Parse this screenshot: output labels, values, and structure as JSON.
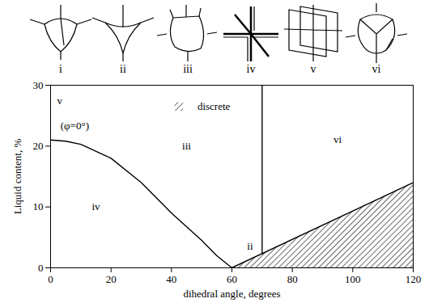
{
  "chart_data": {
    "type": "line",
    "xlabel": "dihedral angle, degrees",
    "ylabel": "Liquid content, %",
    "xlim": [
      0,
      120
    ],
    "ylim": [
      0,
      30
    ],
    "xticks": [
      0,
      20,
      40,
      60,
      80,
      100,
      120
    ],
    "yticks": [
      0,
      10,
      20,
      30
    ],
    "grid": false,
    "series": [
      {
        "x": [
          0,
          5,
          10,
          20,
          30,
          40,
          50,
          55,
          60
        ],
        "values": [
          21,
          20.8,
          20.3,
          18,
          14,
          9,
          4.5,
          2,
          0
        ],
        "color": "#000000"
      },
      {
        "x": [
          60,
          120
        ],
        "values": [
          0,
          14
        ],
        "color": "#000000"
      },
      {
        "x": [
          70,
          70
        ],
        "values": [
          2.3,
          30
        ],
        "color": "#000000"
      }
    ],
    "regions": [
      {
        "x": [
          60,
          120
        ],
        "lower": [
          0,
          0
        ],
        "upper": [
          0,
          14
        ]
      }
    ],
    "annotations": [
      {
        "text": "v",
        "x": 3,
        "y": 27.5
      },
      {
        "text": "(φ=0°)",
        "x": 8,
        "y": 23.3
      },
      {
        "text": "iii",
        "x": 45,
        "y": 20
      },
      {
        "text": "iv",
        "x": 15,
        "y": 10
      },
      {
        "text": "ii",
        "x": 66,
        "y": 3.5
      },
      {
        "text": "vi",
        "x": 95,
        "y": 21
      },
      {
        "text": "discrete",
        "x": 54,
        "y": 26.5,
        "marker": "hatch"
      }
    ],
    "diagrams": [
      "i",
      "ii",
      "iii",
      "iv",
      "v",
      "vi"
    ]
  }
}
